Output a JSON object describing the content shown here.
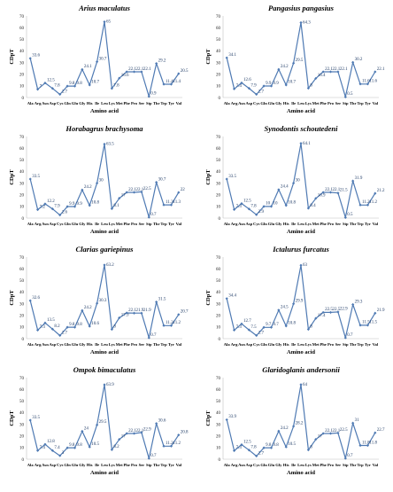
{
  "figure": {
    "categories": [
      "Ala",
      "Arg",
      "Asn",
      "Asp",
      "Cys",
      "Gln",
      "Glu",
      "Gly",
      "His",
      "Ile",
      "Leu",
      "Lys",
      "Met",
      "Phe",
      "Pro",
      "Ser",
      "Stp",
      "Thr",
      "Trp",
      "Tyr",
      "Val"
    ],
    "line_color": "#4f7ab3",
    "marker_color": "#4f7ab3",
    "label_color": "#1f3b66"
  },
  "chart_data": [
    {
      "type": "line",
      "title": "Arius maculatus",
      "xlabel": "Amino acid",
      "ylabel": "CDpT",
      "ylim": [
        0,
        70
      ],
      "yticks": [
        0,
        10,
        20,
        30,
        40,
        50,
        60,
        70
      ],
      "categories": [
        "Ala",
        "Arg",
        "Asn",
        "Asp",
        "Cys",
        "Gln",
        "Glu",
        "Gly",
        "His",
        "Ile",
        "Leu",
        "Lys",
        "Met",
        "Phe",
        "Pro",
        "Ser",
        "Stp",
        "Thr",
        "Trp",
        "Tyr",
        "Val"
      ],
      "values": [
        33.6,
        7,
        12.5,
        7.8,
        2.7,
        9.8,
        9.8,
        24.1,
        10.7,
        30.7,
        65,
        7.8,
        16.6,
        22.1,
        22.1,
        22.1,
        0.9,
        29.2,
        11.4,
        11.4,
        20.5
      ],
      "labels": [
        "33.6",
        "7",
        "12.5",
        "7.8",
        "2.7",
        "9.8",
        "9.8",
        "24.1",
        "10.7",
        "30.7",
        "65",
        "7.8",
        "16.6",
        "22.1",
        "22.1",
        "22.1",
        "0.9",
        "29.2",
        "11.4",
        "11.4",
        "20.5"
      ]
    },
    {
      "type": "line",
      "title": "Pangasius pangasius",
      "xlabel": "Amino acid",
      "ylabel": "CDpT",
      "ylim": [
        0,
        70
      ],
      "yticks": [
        0,
        10,
        20,
        30,
        40,
        50,
        60,
        70
      ],
      "categories": [
        "Ala",
        "Arg",
        "Asn",
        "Asp",
        "Cys",
        "Gln",
        "Glu",
        "Gly",
        "His",
        "Ile",
        "Leu",
        "Lys",
        "Met",
        "Phe",
        "Pro",
        "Ser",
        "Stp",
        "Thr",
        "Trp",
        "Tyr",
        "Val"
      ],
      "values": [
        34.1,
        7.4,
        12.6,
        7.9,
        2.7,
        9.9,
        9.9,
        24.2,
        10.7,
        29.5,
        64.3,
        8,
        16.4,
        22.1,
        22.1,
        22.1,
        0.5,
        30.2,
        11.6,
        11.6,
        22.1
      ],
      "labels": [
        "34.1",
        "7.4",
        "12.6",
        "7.9",
        "2.7",
        "9.9",
        "9.9",
        "24.2",
        "10.7",
        "29.5",
        "64.3",
        "8",
        "16.4",
        "22.1",
        "22.1",
        "22.1",
        "0.5",
        "30.2",
        "11.6",
        "11.6",
        "22.1"
      ]
    },
    {
      "type": "line",
      "title": "Horabagrus brachysoma",
      "xlabel": "Amino acid",
      "ylabel": "CDpT",
      "ylim": [
        0,
        70
      ],
      "yticks": [
        0,
        10,
        20,
        30,
        40,
        50,
        60,
        70
      ],
      "categories": [
        "Ala",
        "Arg",
        "Asn",
        "Asp",
        "Cys",
        "Gln",
        "Glu",
        "Gly",
        "His",
        "Ile",
        "Leu",
        "Lys",
        "Met",
        "Phe",
        "Pro",
        "Ser",
        "Stp",
        "Thr",
        "Trp",
        "Tyr",
        "Val"
      ],
      "values": [
        33.5,
        7.2,
        12.2,
        7.9,
        2.6,
        9.9,
        9.9,
        24.2,
        10.8,
        30,
        63.5,
        8.1,
        17,
        22.1,
        22.1,
        22.5,
        0.7,
        30.7,
        11.3,
        11.3,
        22
      ],
      "labels": [
        "33.5",
        "7.2",
        "12.2",
        "7.9",
        "2.6",
        "9.9",
        "9.9",
        "24.2",
        "10.8",
        "30",
        "63.5",
        "8.1",
        "17",
        "22.1",
        "22.1",
        "22.5",
        "0.7",
        "30.7",
        "11.3",
        "11.3",
        "22"
      ]
    },
    {
      "type": "line",
      "title": "Synodontis schoutedeni",
      "xlabel": "Amino acid",
      "ylabel": "CDpT",
      "ylim": [
        0,
        70
      ],
      "yticks": [
        0,
        10,
        20,
        30,
        40,
        50,
        60,
        70
      ],
      "categories": [
        "Ala",
        "Arg",
        "Asn",
        "Asp",
        "Cys",
        "Gln",
        "Glu",
        "Gly",
        "His",
        "Ile",
        "Leu",
        "Lys",
        "Met",
        "Phe",
        "Pro",
        "Ser",
        "Stp",
        "Thr",
        "Trp",
        "Tyr",
        "Val"
      ],
      "values": [
        33.5,
        7.3,
        12.5,
        7.8,
        2.9,
        10,
        10,
        24.4,
        10.8,
        30,
        64.1,
        8.4,
        16.9,
        22.1,
        22.1,
        21.5,
        0.5,
        31.9,
        11.2,
        11.2,
        21.2
      ],
      "labels": [
        "33.5",
        "7.3",
        "12.5",
        "7.8",
        "2.9",
        "10",
        "10",
        "24.4",
        "10.8",
        "30",
        "64.1",
        "8.4",
        "16.9",
        "22.1",
        "22.1",
        "21.5",
        "0.5",
        "31.9",
        "11.2",
        "11.2",
        "21.2"
      ]
    },
    {
      "type": "line",
      "title": "Clarias gariepinus",
      "xlabel": "Amino acid",
      "ylabel": "CDpT",
      "ylim": [
        0,
        70
      ],
      "yticks": [
        0,
        10,
        20,
        30,
        40,
        50,
        60,
        70
      ],
      "categories": [
        "Ala",
        "Arg",
        "Asn",
        "Asp",
        "Cys",
        "Gln",
        "Glu",
        "Gly",
        "His",
        "Ile",
        "Leu",
        "Lys",
        "Met",
        "Phe",
        "Pro",
        "Ser",
        "Stp",
        "Thr",
        "Trp",
        "Tyr",
        "Val"
      ],
      "values": [
        32.6,
        7.3,
        13.5,
        8.2,
        2.7,
        9.8,
        9.8,
        24.2,
        10.6,
        30.3,
        63.2,
        8,
        17.9,
        22.1,
        21.9,
        21.9,
        0.7,
        31.5,
        11.2,
        11.2,
        20.7
      ],
      "labels": [
        "32.6",
        "7.3",
        "13.5",
        "8.2",
        "2.7",
        "9.8",
        "9.8",
        "24.2",
        "10.6",
        "30.3",
        "63.2",
        "8",
        "17.9",
        "22.1",
        "21.9",
        "21.9",
        "0.7",
        "31.5",
        "11.2",
        "11.2",
        "20.7"
      ]
    },
    {
      "type": "line",
      "title": "Ictalurus furcatus",
      "xlabel": "Amino acid",
      "ylabel": "CDpT",
      "ylim": [
        0,
        70
      ],
      "yticks": [
        0,
        10,
        20,
        30,
        40,
        50,
        60,
        70
      ],
      "categories": [
        "Ala",
        "Arg",
        "Asn",
        "Asp",
        "Cys",
        "Gln",
        "Glu",
        "Gly",
        "His",
        "Ile",
        "Leu",
        "Lys",
        "Met",
        "Phe",
        "Pro",
        "Ser",
        "Stp",
        "Thr",
        "Trp",
        "Tyr",
        "Val"
      ],
      "values": [
        34.4,
        7.3,
        12.7,
        7.5,
        2.7,
        9.7,
        9.7,
        24.5,
        10.8,
        29.9,
        63,
        8,
        17.4,
        22.5,
        22.5,
        22.9,
        0.7,
        29.3,
        11.5,
        11.5,
        21.9
      ],
      "labels": [
        "34.4",
        "7.3",
        "12.7",
        "7.5",
        "2.7",
        "9.7",
        "9.7",
        "24.5",
        "10.8",
        "29.9",
        "63",
        "8",
        "17.4",
        "22.5",
        "22.5",
        "22.9",
        "0.7",
        "29.3",
        "11.5",
        "11.5",
        "21.9"
      ]
    },
    {
      "type": "line",
      "title": "Ompok bimaculatus",
      "xlabel": "Amino acid",
      "ylabel": "CDpT",
      "ylim": [
        0,
        70
      ],
      "yticks": [
        0,
        10,
        20,
        30,
        40,
        50,
        60,
        70
      ],
      "categories": [
        "Ala",
        "Arg",
        "Asn",
        "Asp",
        "Cys",
        "Gln",
        "Glu",
        "Gly",
        "His",
        "Ile",
        "Leu",
        "Lys",
        "Met",
        "Phe",
        "Pro",
        "Ser",
        "Stp",
        "Thr",
        "Trp",
        "Tyr",
        "Val"
      ],
      "values": [
        33.5,
        7.4,
        12.8,
        7.4,
        3,
        9.8,
        9.8,
        24,
        10.5,
        29.5,
        63.9,
        8.2,
        17,
        22.1,
        22.1,
        22.9,
        0.7,
        30.6,
        11.2,
        11.2,
        20.8
      ],
      "labels": [
        "33.5",
        "7.4",
        "12.8",
        "7.4",
        "3",
        "9.8",
        "9.8",
        "24",
        "10.5",
        "29.5",
        "63.9",
        "8.2",
        "17",
        "22.1",
        "22.1",
        "22.9",
        "0.7",
        "30.6",
        "11.2",
        "11.2",
        "20.8"
      ]
    },
    {
      "type": "line",
      "title": "Glaridoglanis andersonii",
      "xlabel": "Amino acid",
      "ylabel": "CDpT",
      "ylim": [
        0,
        70
      ],
      "yticks": [
        0,
        10,
        20,
        30,
        40,
        50,
        60,
        70
      ],
      "categories": [
        "Ala",
        "Arg",
        "Asn",
        "Asp",
        "Cys",
        "Gln",
        "Glu",
        "Gly",
        "His",
        "Ile",
        "Leu",
        "Lys",
        "Met",
        "Phe",
        "Pro",
        "Ser",
        "Stp",
        "Thr",
        "Trp",
        "Tyr",
        "Val"
      ],
      "values": [
        33.9,
        7.3,
        12.5,
        7.8,
        2.7,
        9.8,
        9.8,
        24.2,
        10.5,
        28.2,
        64,
        8,
        17,
        22.1,
        22.1,
        22.5,
        0.7,
        31,
        11.8,
        11.8,
        22.7
      ],
      "labels": [
        "33.9",
        "7.3",
        "12.5",
        "7.8",
        "2.7",
        "9.8",
        "9.8",
        "24.2",
        "10.5",
        "28.2",
        "64",
        "8",
        "17",
        "22.1",
        "22.1",
        "22.5",
        "0.7",
        "31",
        "11.8",
        "11.8",
        "22.7"
      ]
    }
  ]
}
